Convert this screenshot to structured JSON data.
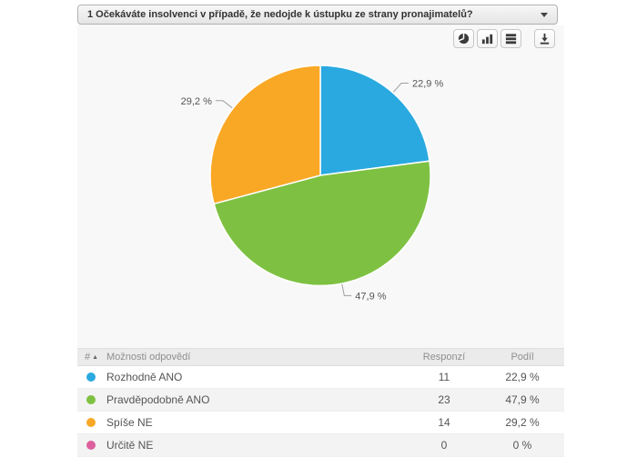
{
  "question": {
    "label": "1 Očekáváte insolvenci v případě, že nedojde k ústupku ze strany pronajimatelů?"
  },
  "toolbar": {
    "buttons": [
      {
        "name": "pie-view",
        "icon": "pie-chart-icon"
      },
      {
        "name": "bar-view",
        "icon": "bar-chart-icon"
      },
      {
        "name": "table-view",
        "icon": "list-icon"
      },
      {
        "name": "download",
        "icon": "download-icon"
      }
    ]
  },
  "chart_data": {
    "type": "pie",
    "title": "",
    "start_angle_deg": -90,
    "direction": "clockwise",
    "legend_position": "none",
    "label_color": "#555555",
    "leader_line_color": "#a0a0a0",
    "slices": [
      {
        "label": "Rozhodně ANO",
        "value": 11,
        "percent_label": "22,9 %",
        "color": "#29a9e0"
      },
      {
        "label": "Pravděpodobně ANO",
        "value": 23,
        "percent_label": "47,9 %",
        "color": "#7ec142"
      },
      {
        "label": "Spíše NE",
        "value": 14,
        "percent_label": "29,2 %",
        "color": "#f9a826"
      },
      {
        "label": "Určitě NE",
        "value": 0,
        "percent_label": "0 %",
        "color": "#dd5f9e"
      }
    ]
  },
  "table": {
    "headers": {
      "index": "#",
      "sort_indicator": "▲",
      "answer": "Možnosti odpovědí",
      "responses": "Responzí",
      "share": "Podíl"
    },
    "rows": [
      {
        "color": "#29a9e0",
        "answer": "Rozhodně ANO",
        "responses": "11",
        "share": "22,9 %"
      },
      {
        "color": "#7ec142",
        "answer": "Pravděpodobně ANO",
        "responses": "23",
        "share": "47,9 %"
      },
      {
        "color": "#f9a826",
        "answer": "Spíše NE",
        "responses": "14",
        "share": "29,2 %"
      },
      {
        "color": "#dd5f9e",
        "answer": "Určitě NE",
        "responses": "0",
        "share": "0 %"
      }
    ]
  }
}
